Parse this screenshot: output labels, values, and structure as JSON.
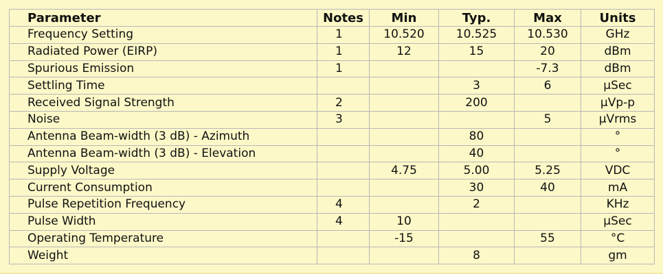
{
  "table": {
    "headers": [
      "Parameter",
      "Notes",
      "Min",
      "Typ.",
      "Max",
      "Units"
    ],
    "rows": [
      [
        "Frequency Setting",
        "1",
        "10.520",
        "10.525",
        "10.530",
        "GHz"
      ],
      [
        "Radiated Power (EIRP)",
        "1",
        "12",
        "15",
        "20",
        "dBm"
      ],
      [
        "Spurious Emission",
        "1",
        "",
        "",
        "-7.3",
        "dBm"
      ],
      [
        "Settling Time",
        "",
        "",
        "3",
        "6",
        "µSec"
      ],
      [
        "Received Signal Strength",
        "2",
        "",
        "200",
        "",
        "µVp-p"
      ],
      [
        "Noise",
        "3",
        "",
        "",
        "5",
        "µVrms"
      ],
      [
        "Antenna Beam-width (3 dB) - Azimuth",
        "",
        "",
        "80",
        "",
        "°"
      ],
      [
        "Antenna Beam-width (3 dB) - Elevation",
        "",
        "",
        "40",
        "",
        "°"
      ],
      [
        "Supply Voltage",
        "",
        "4.75",
        "5.00",
        "5.25",
        "VDC"
      ],
      [
        "Current Consumption",
        "",
        "",
        "30",
        "40",
        "mA"
      ],
      [
        "Pulse Repetition Frequency",
        "4",
        "",
        "2",
        "",
        "KHz"
      ],
      [
        "Pulse Width",
        "4",
        "10",
        "",
        "",
        "µSec"
      ],
      [
        "Operating Temperature",
        "",
        "-15",
        "",
        "55",
        "°C"
      ],
      [
        "Weight",
        "",
        "",
        "8",
        "",
        "gm"
      ]
    ]
  }
}
